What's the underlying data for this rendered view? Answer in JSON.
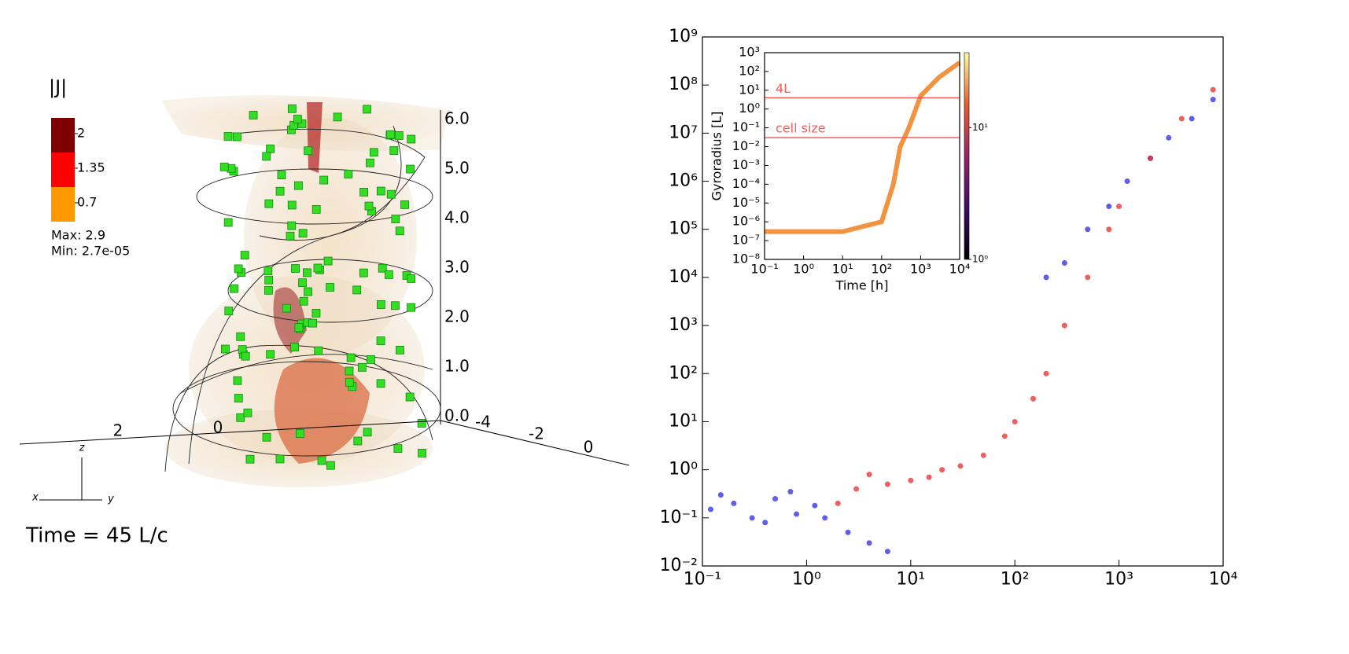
{
  "panel_3d": {
    "colorbar_title": "|J|",
    "colorbar_labels": [
      "2",
      "1.35",
      "0.7"
    ],
    "colorbar_colors": [
      "#7f0000",
      "#ff0000",
      "#ff9900"
    ],
    "max_label": "Max: 2.9",
    "min_label": "Min: 2.7e-05",
    "z_axis_labels": [
      "6.0",
      "5.0",
      "4.0",
      "3.0",
      "2.0",
      "1.0",
      "0.0"
    ],
    "y_axis_labels": [
      "2",
      "0"
    ],
    "x_axis_labels": [
      "-4",
      "-2",
      "0"
    ],
    "orientation": {
      "z": "z",
      "x": "x",
      "y": "y"
    },
    "time_label": "Time = 45 L/c"
  },
  "chart_data": [
    {
      "type": "scatter",
      "log_x": true,
      "log_y": true,
      "xlim": [
        0.1,
        10000
      ],
      "ylim": [
        0.01,
        1000000000
      ],
      "xticks": [
        {
          "value": 0.1,
          "label": "10⁻¹"
        },
        {
          "value": 1,
          "label": "10⁰"
        },
        {
          "value": 10,
          "label": "10¹"
        },
        {
          "value": 100,
          "label": "10²"
        },
        {
          "value": 1000,
          "label": "10³"
        },
        {
          "value": 10000,
          "label": "10⁴"
        }
      ],
      "yticks": [
        {
          "value": 0.01,
          "label": "10⁻²"
        },
        {
          "value": 0.1,
          "label": "10⁻¹"
        },
        {
          "value": 1,
          "label": "10⁰"
        },
        {
          "value": 10,
          "label": "10¹"
        },
        {
          "value": 100,
          "label": "10²"
        },
        {
          "value": 1000,
          "label": "10³"
        },
        {
          "value": 10000,
          "label": "10⁴"
        },
        {
          "value": 100000,
          "label": "10⁵"
        },
        {
          "value": 1000000,
          "label": "10⁶"
        },
        {
          "value": 10000000,
          "label": "10⁷"
        },
        {
          "value": 100000000,
          "label": "10⁸"
        },
        {
          "value": 1000000000,
          "label": "10⁹"
        }
      ],
      "series": [
        {
          "color": "#2a2ae0",
          "x": [
            0.12,
            0.2,
            0.3,
            0.5,
            0.8,
            1.2,
            0.15,
            0.4,
            0.7,
            1.5,
            200,
            300,
            500,
            800,
            1200,
            2000,
            3000,
            5000,
            8000,
            2.5,
            4,
            6
          ],
          "values": [
            0.15,
            0.2,
            0.1,
            0.25,
            0.12,
            0.18,
            0.3,
            0.08,
            0.35,
            0.1,
            10000,
            20000,
            100000,
            300000,
            1000000,
            3000000,
            8000000,
            20000000,
            50000000,
            0.05,
            0.03,
            0.02
          ]
        },
        {
          "color": "#e82a2a",
          "x": [
            2,
            3,
            4,
            6,
            10,
            15,
            20,
            30,
            50,
            80,
            100,
            150,
            200,
            300,
            500,
            800,
            1000,
            2000,
            4000,
            8000
          ],
          "values": [
            0.2,
            0.4,
            0.8,
            0.5,
            0.6,
            0.7,
            1,
            1.2,
            2,
            5,
            10,
            30,
            100,
            1000,
            10000,
            100000,
            300000,
            3000000,
            20000000,
            80000000
          ]
        }
      ]
    },
    {
      "type": "line",
      "log_x": true,
      "log_y": true,
      "x_label": "Time [h]",
      "y_label": "Gyroradius [L]",
      "xlim": [
        0.1,
        10000
      ],
      "ylim": [
        1e-08,
        1000
      ],
      "xticks": [
        {
          "value": 0.1,
          "label": "10⁻¹"
        },
        {
          "value": 1,
          "label": "10⁰"
        },
        {
          "value": 10,
          "label": "10¹"
        },
        {
          "value": 100,
          "label": "10²"
        },
        {
          "value": 1000,
          "label": "10³"
        },
        {
          "value": 10000,
          "label": "10⁴"
        }
      ],
      "yticks": [
        {
          "value": 1e-08,
          "label": "10⁻⁸"
        },
        {
          "value": 1e-07,
          "label": "10⁻⁷"
        },
        {
          "value": 1e-06,
          "label": "10⁻⁶"
        },
        {
          "value": 1e-05,
          "label": "10⁻⁵"
        },
        {
          "value": 0.0001,
          "label": "10⁻⁴"
        },
        {
          "value": 0.001,
          "label": "10⁻³"
        },
        {
          "value": 0.01,
          "label": "10⁻²"
        },
        {
          "value": 0.1,
          "label": "10⁻¹"
        },
        {
          "value": 1,
          "label": "10⁰"
        },
        {
          "value": 10,
          "label": "10¹"
        },
        {
          "value": 100,
          "label": "10²"
        },
        {
          "value": 1000,
          "label": "10³"
        }
      ],
      "series": [
        {
          "color": "#f08020",
          "x": [
            0.1,
            1,
            10,
            100,
            200,
            300,
            500,
            1000,
            3000,
            10000
          ],
          "values": [
            3e-07,
            3e-07,
            3e-07,
            1e-06,
            0.0001,
            0.01,
            0.1,
            5,
            50,
            300
          ]
        }
      ],
      "hlines": [
        {
          "text": "4L",
          "y": 4
        },
        {
          "text": "cell size",
          "y": 0.03
        }
      ],
      "hline_color": "#ff5a5a",
      "colorbar": {
        "lim": [
          1,
          37
        ],
        "ticks": [
          {
            "value": 10,
            "label": "10¹"
          },
          {
            "value": 1,
            "label": "10⁰"
          }
        ]
      }
    }
  ]
}
